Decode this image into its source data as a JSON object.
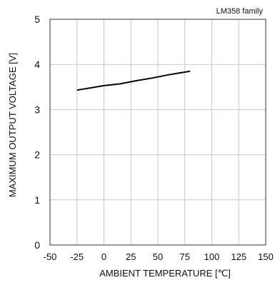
{
  "chart_data": {
    "type": "line",
    "title": "",
    "annotation": "LM358  family",
    "xlabel": "AMBIENT TEMPERATURE [℃]",
    "ylabel": "MAXIMUM OUTPUT VOLTAGE [V]",
    "xlim": [
      -50,
      150
    ],
    "ylim": [
      0,
      5
    ],
    "x_ticks": [
      -50,
      -25,
      0,
      25,
      50,
      75,
      100,
      125,
      150
    ],
    "y_ticks": [
      0,
      1,
      2,
      3,
      4,
      5
    ],
    "grid": true,
    "series": [
      {
        "color": "#000000",
        "x": [
          -25,
          -15,
          0,
          15,
          30,
          45,
          60,
          80
        ],
        "y": [
          3.43,
          3.47,
          3.53,
          3.57,
          3.64,
          3.7,
          3.77,
          3.85
        ]
      }
    ]
  }
}
